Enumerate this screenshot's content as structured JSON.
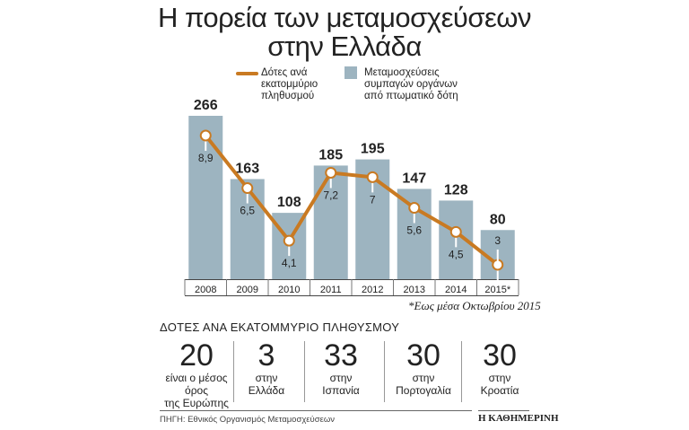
{
  "title_line1": "Η πορεία των μεταμοσχεύσεων",
  "title_line2": "στην Ελλάδα",
  "chart_data": {
    "type": "bar",
    "categories": [
      "2008",
      "2009",
      "2010",
      "2011",
      "2012",
      "2013",
      "2014",
      "2015*"
    ],
    "series": [
      {
        "name": "Μεταμοσχεύσεις συμπαγών οργάνων από πτωματικό δότη",
        "kind": "bar",
        "values": [
          266,
          163,
          108,
          185,
          195,
          147,
          128,
          80
        ],
        "color": "#9db4c0"
      },
      {
        "name": "Δότες ανά εκατομμύριο πληθυσμού",
        "kind": "line",
        "values": [
          8.9,
          6.5,
          4.1,
          7.2,
          7,
          5.6,
          4.5,
          3
        ],
        "labels": [
          "8,9",
          "6,5",
          "4,1",
          "7,2",
          "7",
          "5,6",
          "4,5",
          "3"
        ],
        "color": "#c97a22"
      }
    ],
    "legend": "top-right",
    "grid": false
  },
  "legend": {
    "line_label": "Δότες ανά εκατομμύριο πληθυσμού",
    "line_label_lines": [
      "Δότες ανά",
      "εκατομμύριο",
      "πληθυσμού"
    ],
    "bar_label_lines": [
      "Μεταμοσχεύσεις",
      "συμπαγών οργάνων",
      "από πτωματικό δότη"
    ]
  },
  "footnote": "*Εως μέσα Οκτωβρίου 2015",
  "stats": {
    "heading": "ΔΟΤΕΣ ΑΝΑ ΕΚΑΤΟΜΜΥΡΙΟ ΠΛΗΘΥΣΜΟΥ",
    "items": [
      {
        "value": "20",
        "label_lines": [
          "είναι ο μέσος",
          "όρος",
          "της Ευρώπης"
        ]
      },
      {
        "value": "3",
        "label_lines": [
          "στην",
          "Ελλάδα"
        ]
      },
      {
        "value": "33",
        "label_lines": [
          "στην",
          "Ισπανία"
        ]
      },
      {
        "value": "30",
        "label_lines": [
          "στην",
          "Πορτογαλία"
        ]
      },
      {
        "value": "30",
        "label_lines": [
          "στην",
          "Κροατία"
        ]
      }
    ]
  },
  "source": "ΠΗΓΗ: Εθνικός Οργανισμός Μεταμοσχεύσεων",
  "brand": "Η ΚΑΘΗΜΕΡΙΝΗ"
}
